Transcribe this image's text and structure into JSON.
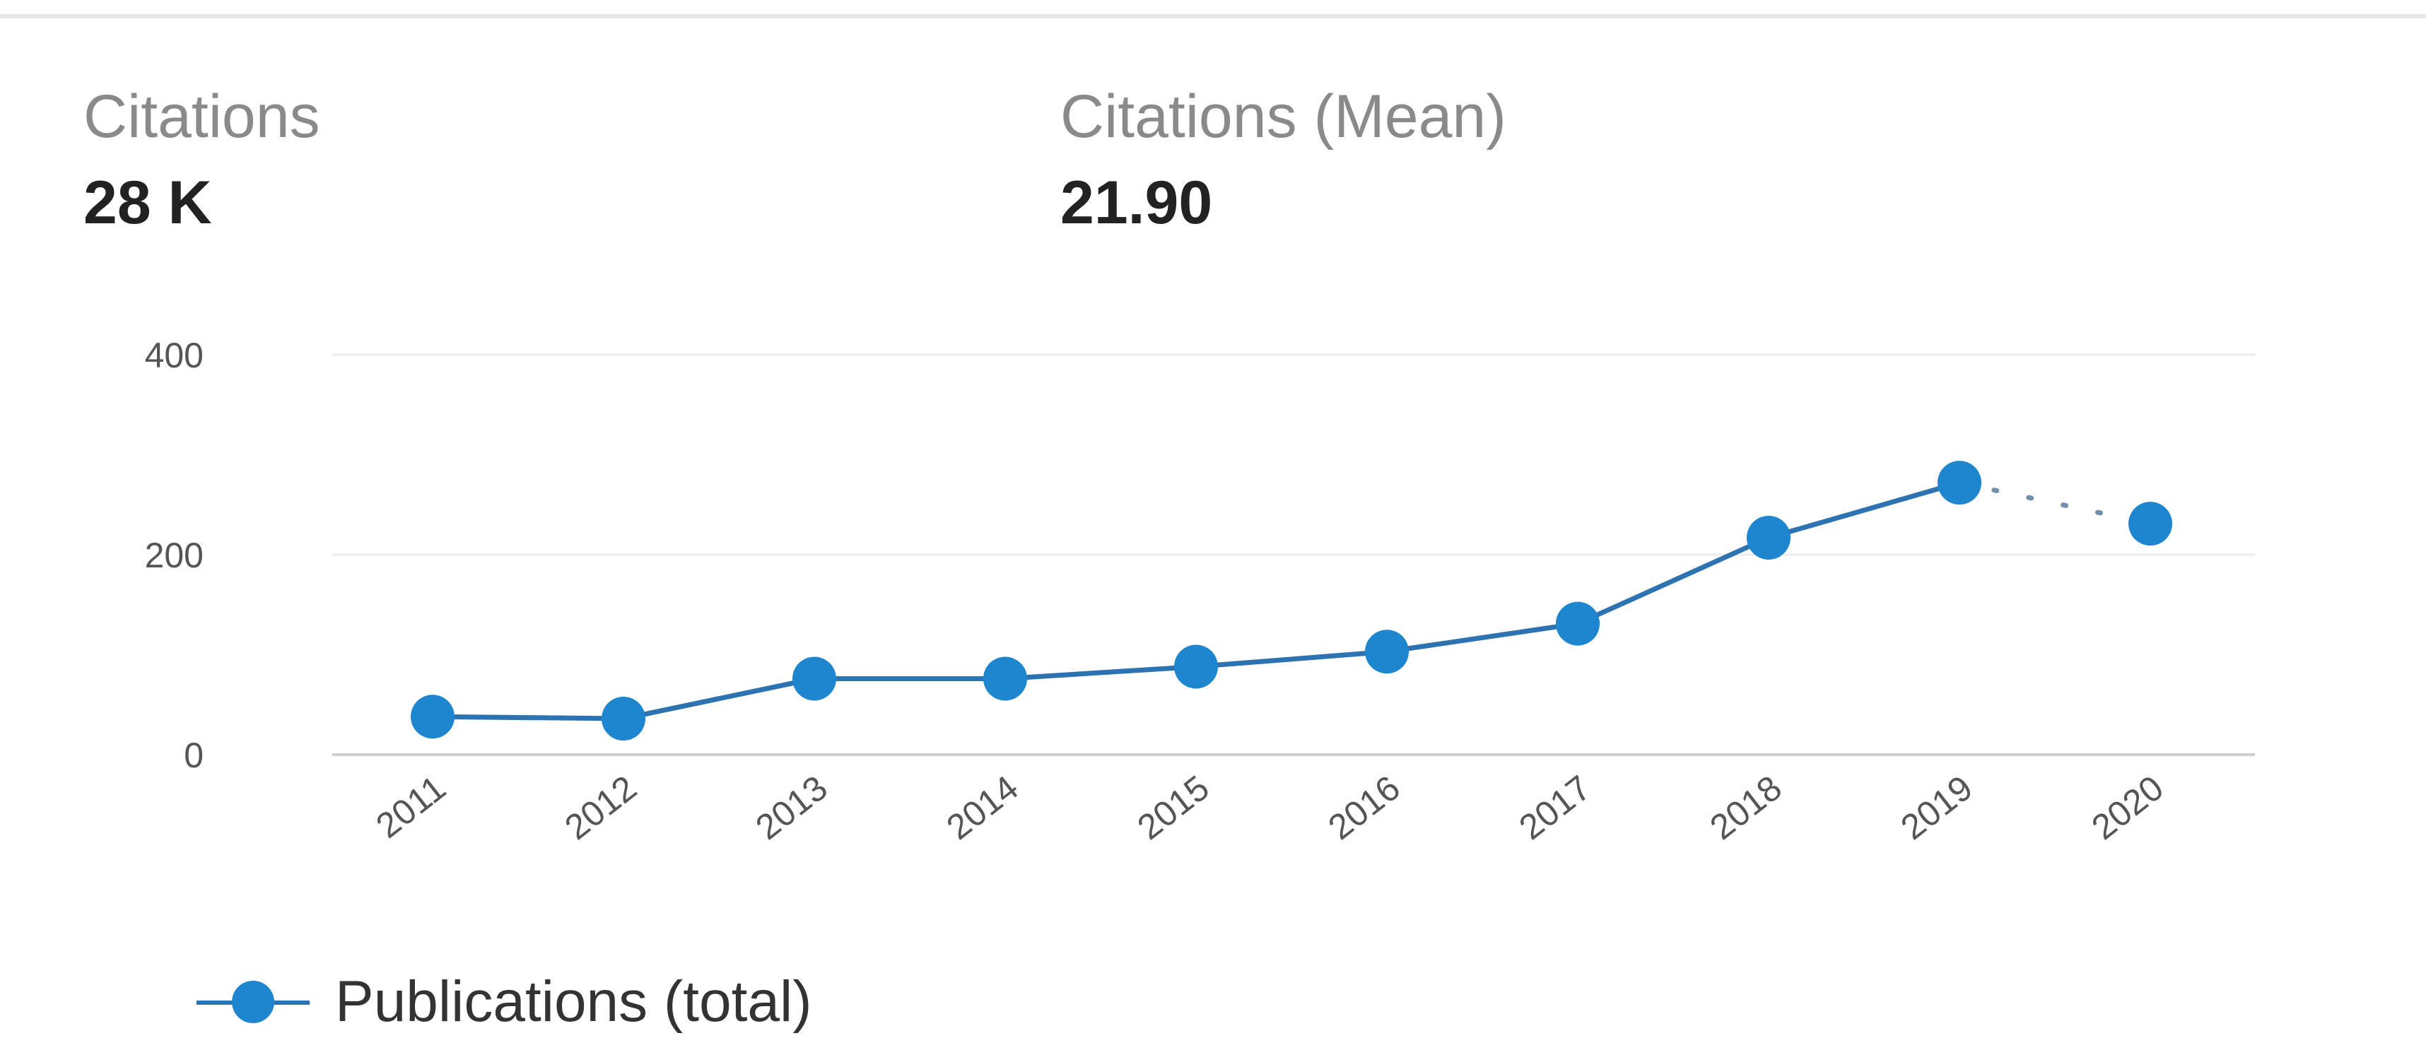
{
  "stats": {
    "citations": {
      "label": "Citations",
      "value": "28 K"
    },
    "mean": {
      "label": "Citations (Mean)",
      "value": "21.90"
    }
  },
  "chart_data": {
    "type": "line",
    "x": [
      "2011",
      "2012",
      "2013",
      "2014",
      "2015",
      "2016",
      "2017",
      "2018",
      "2019",
      "2020"
    ],
    "series": [
      {
        "name": "Publications (total)",
        "values": [
          38,
          36,
          76,
          76,
          88,
          103,
          131,
          217,
          272,
          231
        ],
        "color": "#1d86cf",
        "line_color": "#2d73b2",
        "dotted_last_segment": true
      }
    ],
    "ylim": [
      0,
      400
    ],
    "yticks": [
      "0",
      "200",
      "400"
    ],
    "grid": true,
    "legend": "bottom-left"
  }
}
